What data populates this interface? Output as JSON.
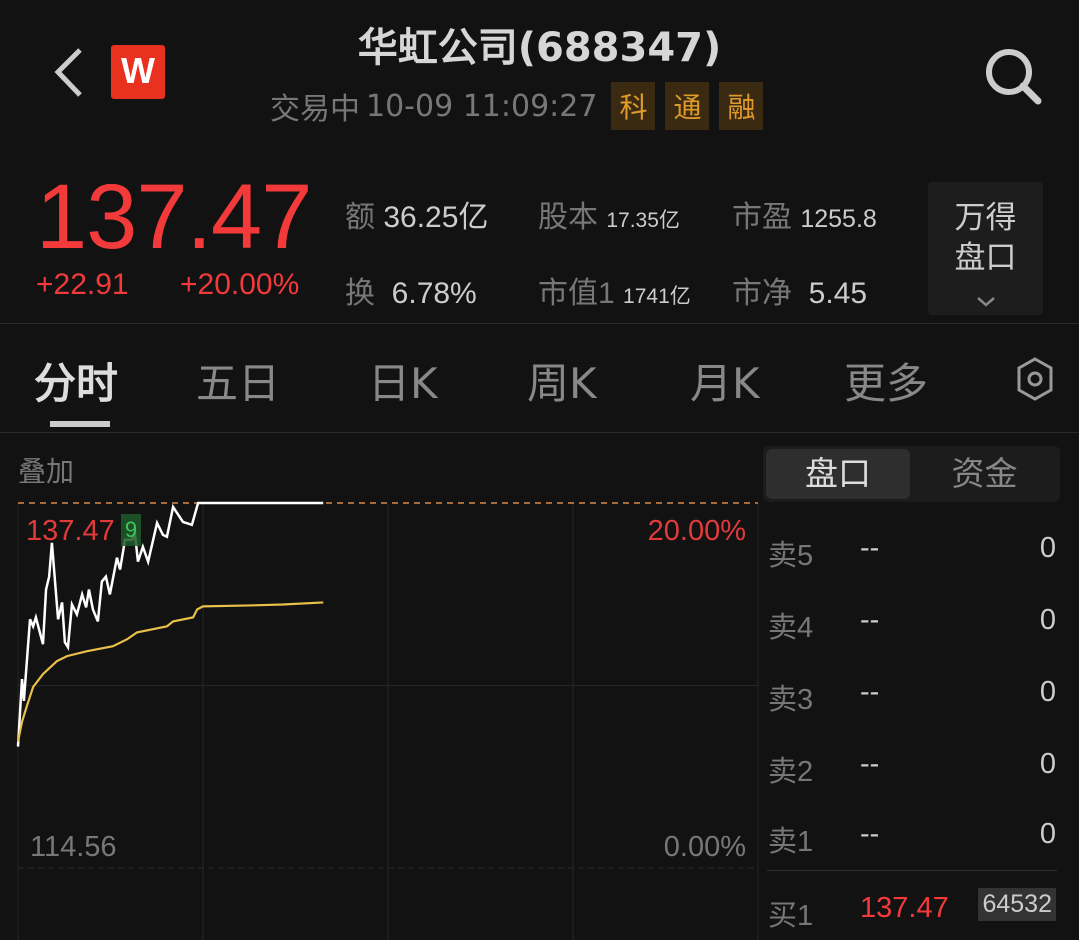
{
  "header": {
    "title": "华虹公司(688347)",
    "status": "交易中",
    "datetime": "10-09 11:09:27",
    "tags": [
      "科",
      "通",
      "融"
    ],
    "logo_text": "W",
    "brand_color": "#e8321f"
  },
  "quote": {
    "price": "137.47",
    "change": "+22.91",
    "change_pct": "+20.00%",
    "up_color": "#f23a3a",
    "stats": [
      {
        "label": "额",
        "value": "36.25亿"
      },
      {
        "label": "股本",
        "value": "17.35亿"
      },
      {
        "label": "市盈",
        "value": "1255.8"
      },
      {
        "label": "换",
        "value": "6.78%"
      },
      {
        "label": "市值1",
        "value": "1741亿"
      },
      {
        "label": "市净",
        "value": "5.45"
      }
    ],
    "panel_button": {
      "line1": "万得",
      "line2": "盘口"
    }
  },
  "tabs": [
    {
      "label": "分时",
      "active": true
    },
    {
      "label": "五日"
    },
    {
      "label": "日K"
    },
    {
      "label": "周K"
    },
    {
      "label": "月K"
    },
    {
      "label": "更多"
    }
  ],
  "overlay_label": "叠加",
  "side_tabs": [
    {
      "label": "盘口",
      "active": true
    },
    {
      "label": "资金"
    }
  ],
  "order_book": {
    "asks": [
      {
        "label": "卖5",
        "price": "--",
        "vol": "0"
      },
      {
        "label": "卖4",
        "price": "--",
        "vol": "0"
      },
      {
        "label": "卖3",
        "price": "--",
        "vol": "0"
      },
      {
        "label": "卖2",
        "price": "--",
        "vol": "0"
      },
      {
        "label": "卖1",
        "price": "--",
        "vol": "0"
      }
    ],
    "bids": [
      {
        "label": "买1",
        "price": "137.47",
        "vol": "64532"
      }
    ]
  },
  "chart_data": {
    "type": "line",
    "x_unit": "minutes since 09:30 open (trading time)",
    "x_range": [
      0,
      240
    ],
    "ylim": [
      114.56,
      137.47
    ],
    "pct_range": [
      "0.00%",
      "20.00%"
    ],
    "y_top_label": "137.47",
    "y_bottom_label": "114.56",
    "pct_top_label": "20.00%",
    "pct_bottom_label": "0.00%",
    "marker_label": "9",
    "grid": true,
    "series": [
      {
        "color": "#ffffff",
        "points": [
          [
            0,
            122.18
          ],
          [
            1.3,
            126.42
          ],
          [
            1.9,
            125.05
          ],
          [
            3.9,
            130.17
          ],
          [
            4.9,
            129.73
          ],
          [
            5.8,
            130.29
          ],
          [
            8.1,
            128.61
          ],
          [
            9.1,
            132.04
          ],
          [
            10.1,
            132.85
          ],
          [
            11,
            134.97
          ],
          [
            13,
            130.17
          ],
          [
            14.3,
            131.23
          ],
          [
            15.2,
            128.73
          ],
          [
            16.2,
            128.42
          ],
          [
            17.5,
            131.1
          ],
          [
            19.1,
            130.48
          ],
          [
            20.8,
            131.73
          ],
          [
            22.1,
            130.92
          ],
          [
            23,
            132.04
          ],
          [
            24.3,
            130.79
          ],
          [
            25.9,
            130.04
          ],
          [
            27.2,
            132.54
          ],
          [
            28.5,
            132.85
          ],
          [
            29.8,
            131.73
          ],
          [
            32.1,
            134.04
          ],
          [
            33.1,
            133.29
          ],
          [
            34.7,
            135.16
          ],
          [
            37,
            135.16
          ],
          [
            37.9,
            135.6
          ],
          [
            38.9,
            133.79
          ],
          [
            40.5,
            134.72
          ],
          [
            42.2,
            133.79
          ],
          [
            45.1,
            136.22
          ],
          [
            47,
            135.47
          ],
          [
            48.3,
            135.35
          ],
          [
            50.3,
            137.22
          ],
          [
            53.5,
            136.28
          ],
          [
            56.4,
            136.1
          ],
          [
            58.4,
            137.47
          ],
          [
            99,
            137.47
          ]
        ]
      },
      {
        "color": "#e8c04a",
        "points": [
          [
            0,
            122.49
          ],
          [
            1.3,
            123.74
          ],
          [
            2.9,
            124.74
          ],
          [
            4.9,
            125.92
          ],
          [
            8.1,
            126.73
          ],
          [
            12.6,
            127.54
          ],
          [
            15.9,
            127.86
          ],
          [
            22.4,
            128.17
          ],
          [
            30.8,
            128.48
          ],
          [
            35.4,
            128.92
          ],
          [
            38.6,
            129.35
          ],
          [
            48.3,
            129.73
          ],
          [
            50.3,
            130.04
          ],
          [
            56.8,
            130.29
          ],
          [
            58.1,
            130.79
          ],
          [
            60,
            130.98
          ],
          [
            75.2,
            131.04
          ],
          [
            85.9,
            131.1
          ],
          [
            99,
            131.23
          ]
        ]
      }
    ]
  }
}
